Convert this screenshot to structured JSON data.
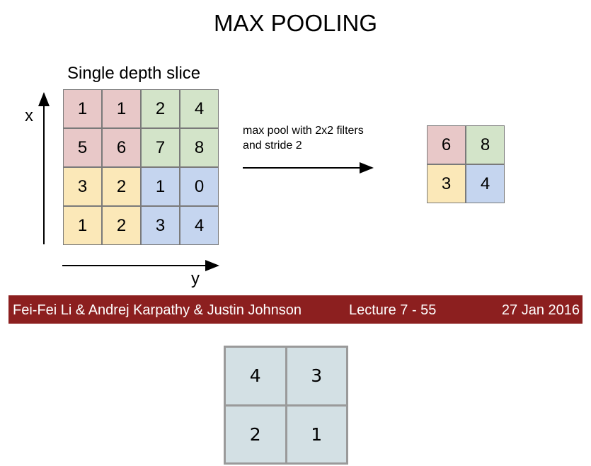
{
  "title": "MAX POOLING",
  "slice_label": "Single depth slice",
  "axes": {
    "x_label": "x",
    "y_label": "y"
  },
  "input_grid": [
    [
      1,
      1,
      2,
      4
    ],
    [
      5,
      6,
      7,
      8
    ],
    [
      3,
      2,
      1,
      0
    ],
    [
      1,
      2,
      3,
      4
    ]
  ],
  "operation": {
    "line1": "max pool with 2x2 filters",
    "line2": "and stride 2"
  },
  "output_grid": [
    [
      6,
      8
    ],
    [
      3,
      4
    ]
  ],
  "colors": {
    "quad_tl": "#e8c8c8",
    "quad_tr": "#d3e4c9",
    "quad_bl": "#fbe8b8",
    "quad_br": "#c5d5ef",
    "footer_bg": "#8c1f1f",
    "out_cell": "#d3e0e4"
  },
  "footer": {
    "authors": "Fei-Fei Li & Andrej Karpathy & Justin Johnson",
    "lecture": "Lecture 7 - 55",
    "date": "27 Jan 2016"
  },
  "second_grid": [
    [
      4,
      3
    ],
    [
      2,
      1
    ]
  ]
}
